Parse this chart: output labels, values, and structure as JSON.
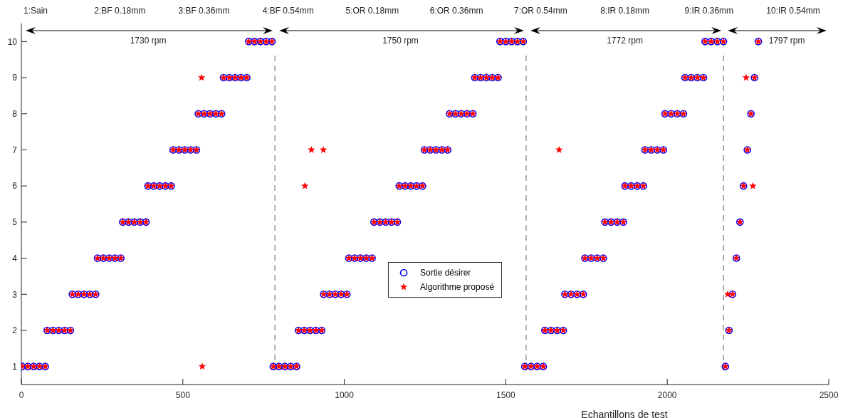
{
  "chart_data": {
    "type": "scatter",
    "xlabel": "Echantillons de test",
    "xlim": [
      0,
      2500
    ],
    "xticks": [
      0,
      500,
      1000,
      1500,
      2000,
      2500
    ],
    "ylim": [
      0.5,
      10.5
    ],
    "yticks": [
      1,
      2,
      3,
      4,
      5,
      6,
      7,
      8,
      9,
      10
    ],
    "grid": false,
    "legend": "center",
    "annotations": [
      "1:Sain",
      "2:BF 0.18mm",
      "3:BF 0.36mm",
      "4:BF 0.54mm",
      "5:OR 0.18mm",
      "6:OR 0.36mm",
      "7:OR 0.54mm",
      "8:IR 0.18mm",
      "9:IR 0.36mm",
      "10:IR 0.54mm",
      "1730 rpm",
      "1750 rpm",
      "1772 rpm",
      "1797 rpm"
    ],
    "ref_lines": [
      {
        "axis": "x",
        "value": 785,
        "line_style": "dashed",
        "color": "#666666"
      },
      {
        "axis": "x",
        "value": 1563,
        "line_style": "dashed",
        "color": "#666666"
      },
      {
        "axis": "x",
        "value": 2174,
        "line_style": "dashed",
        "color": "#666666"
      }
    ],
    "series": [
      {
        "name": "Sortie désirer",
        "color": "#0000ff",
        "marker": "circle",
        "x": [
          2,
          20,
          38,
          56,
          74,
          80,
          98,
          116,
          134,
          152,
          158,
          176,
          194,
          212,
          230,
          236,
          254,
          272,
          290,
          308,
          314,
          332,
          350,
          368,
          386,
          392,
          410,
          428,
          446,
          464,
          470,
          488,
          506,
          524,
          542,
          548,
          566,
          584,
          602,
          620,
          626,
          644,
          662,
          680,
          698,
          704,
          722,
          740,
          758,
          776,
          780,
          798,
          816,
          834,
          852,
          858,
          876,
          894,
          912,
          930,
          936,
          954,
          972,
          990,
          1008,
          1014,
          1032,
          1050,
          1068,
          1086,
          1092,
          1110,
          1128,
          1146,
          1164,
          1170,
          1188,
          1206,
          1224,
          1242,
          1248,
          1266,
          1284,
          1302,
          1320,
          1326,
          1344,
          1362,
          1380,
          1398,
          1404,
          1422,
          1440,
          1458,
          1476,
          1482,
          1500,
          1518,
          1536,
          1554,
          1559,
          1578,
          1597,
          1616,
          1621,
          1640,
          1659,
          1678,
          1683,
          1702,
          1721,
          1740,
          1745,
          1764,
          1783,
          1802,
          1807,
          1826,
          1845,
          1864,
          1869,
          1888,
          1907,
          1926,
          1931,
          1950,
          1969,
          1988,
          1993,
          2012,
          2031,
          2050,
          2055,
          2074,
          2093,
          2112,
          2117,
          2136,
          2155,
          2174,
          2180,
          2191,
          2202,
          2214,
          2225,
          2236,
          2248,
          2259,
          2270,
          2282
        ],
        "values": [
          1,
          1,
          1,
          1,
          1,
          2,
          2,
          2,
          2,
          2,
          3,
          3,
          3,
          3,
          3,
          4,
          4,
          4,
          4,
          4,
          5,
          5,
          5,
          5,
          5,
          6,
          6,
          6,
          6,
          6,
          7,
          7,
          7,
          7,
          7,
          8,
          8,
          8,
          8,
          8,
          9,
          9,
          9,
          9,
          9,
          10,
          10,
          10,
          10,
          10,
          1,
          1,
          1,
          1,
          1,
          2,
          2,
          2,
          2,
          2,
          3,
          3,
          3,
          3,
          3,
          4,
          4,
          4,
          4,
          4,
          5,
          5,
          5,
          5,
          5,
          6,
          6,
          6,
          6,
          6,
          7,
          7,
          7,
          7,
          7,
          8,
          8,
          8,
          8,
          8,
          9,
          9,
          9,
          9,
          9,
          10,
          10,
          10,
          10,
          10,
          1,
          1,
          1,
          1,
          2,
          2,
          2,
          2,
          3,
          3,
          3,
          3,
          4,
          4,
          4,
          4,
          5,
          5,
          5,
          5,
          6,
          6,
          6,
          6,
          7,
          7,
          7,
          7,
          8,
          8,
          8,
          8,
          9,
          9,
          9,
          9,
          10,
          10,
          10,
          10,
          1,
          2,
          3,
          4,
          5,
          6,
          7,
          8,
          9,
          10
        ]
      },
      {
        "name": "Algorithme proposé",
        "color": "#ff0000",
        "marker": "star",
        "x": [
          2,
          20,
          38,
          56,
          74,
          80,
          98,
          116,
          134,
          152,
          158,
          176,
          194,
          212,
          230,
          236,
          254,
          272,
          290,
          308,
          314,
          332,
          350,
          368,
          386,
          392,
          410,
          428,
          446,
          464,
          470,
          488,
          506,
          524,
          542,
          548,
          566,
          584,
          602,
          620,
          626,
          644,
          662,
          680,
          698,
          704,
          722,
          740,
          758,
          776,
          780,
          798,
          816,
          834,
          852,
          858,
          876,
          894,
          912,
          930,
          936,
          954,
          972,
          990,
          1008,
          1014,
          1032,
          1050,
          1068,
          1086,
          1092,
          1110,
          1128,
          1146,
          1164,
          1170,
          1188,
          1206,
          1224,
          1242,
          1248,
          1266,
          1284,
          1302,
          1320,
          1326,
          1344,
          1362,
          1380,
          1398,
          1404,
          1422,
          1440,
          1458,
          1476,
          1482,
          1500,
          1518,
          1536,
          1554,
          1559,
          1578,
          1597,
          1616,
          1621,
          1640,
          1659,
          1678,
          1683,
          1702,
          1721,
          1740,
          1745,
          1764,
          1783,
          1802,
          1807,
          1826,
          1845,
          1864,
          1869,
          1888,
          1907,
          1926,
          1931,
          1950,
          1969,
          1988,
          1993,
          2012,
          2031,
          2050,
          2055,
          2074,
          2093,
          2112,
          2117,
          2136,
          2155,
          2174,
          2180,
          2191,
          2202,
          2214,
          2225,
          2236,
          2248,
          2259,
          2270,
          2282,
          560,
          558,
          878,
          898,
          935,
          1665,
          2244,
          2187,
          2265
        ],
        "values": [
          1,
          1,
          1,
          1,
          1,
          2,
          2,
          2,
          2,
          2,
          3,
          3,
          3,
          3,
          3,
          4,
          4,
          4,
          4,
          4,
          5,
          5,
          5,
          5,
          5,
          6,
          6,
          6,
          6,
          6,
          7,
          7,
          7,
          7,
          7,
          8,
          8,
          8,
          8,
          8,
          9,
          9,
          9,
          9,
          9,
          10,
          10,
          10,
          10,
          10,
          1,
          1,
          1,
          1,
          1,
          2,
          2,
          2,
          2,
          2,
          3,
          3,
          3,
          3,
          3,
          4,
          4,
          4,
          4,
          4,
          5,
          5,
          5,
          5,
          5,
          6,
          6,
          6,
          6,
          6,
          7,
          7,
          7,
          7,
          7,
          8,
          8,
          8,
          8,
          8,
          9,
          9,
          9,
          9,
          9,
          10,
          10,
          10,
          10,
          10,
          1,
          1,
          1,
          1,
          2,
          2,
          2,
          2,
          3,
          3,
          3,
          3,
          4,
          4,
          4,
          4,
          5,
          5,
          5,
          5,
          6,
          6,
          6,
          6,
          7,
          7,
          7,
          7,
          8,
          8,
          8,
          8,
          9,
          9,
          9,
          9,
          10,
          10,
          10,
          10,
          1,
          2,
          3,
          4,
          5,
          6,
          7,
          8,
          9,
          10,
          1,
          9,
          6,
          7,
          7,
          7,
          9,
          3,
          6
        ]
      }
    ]
  }
}
